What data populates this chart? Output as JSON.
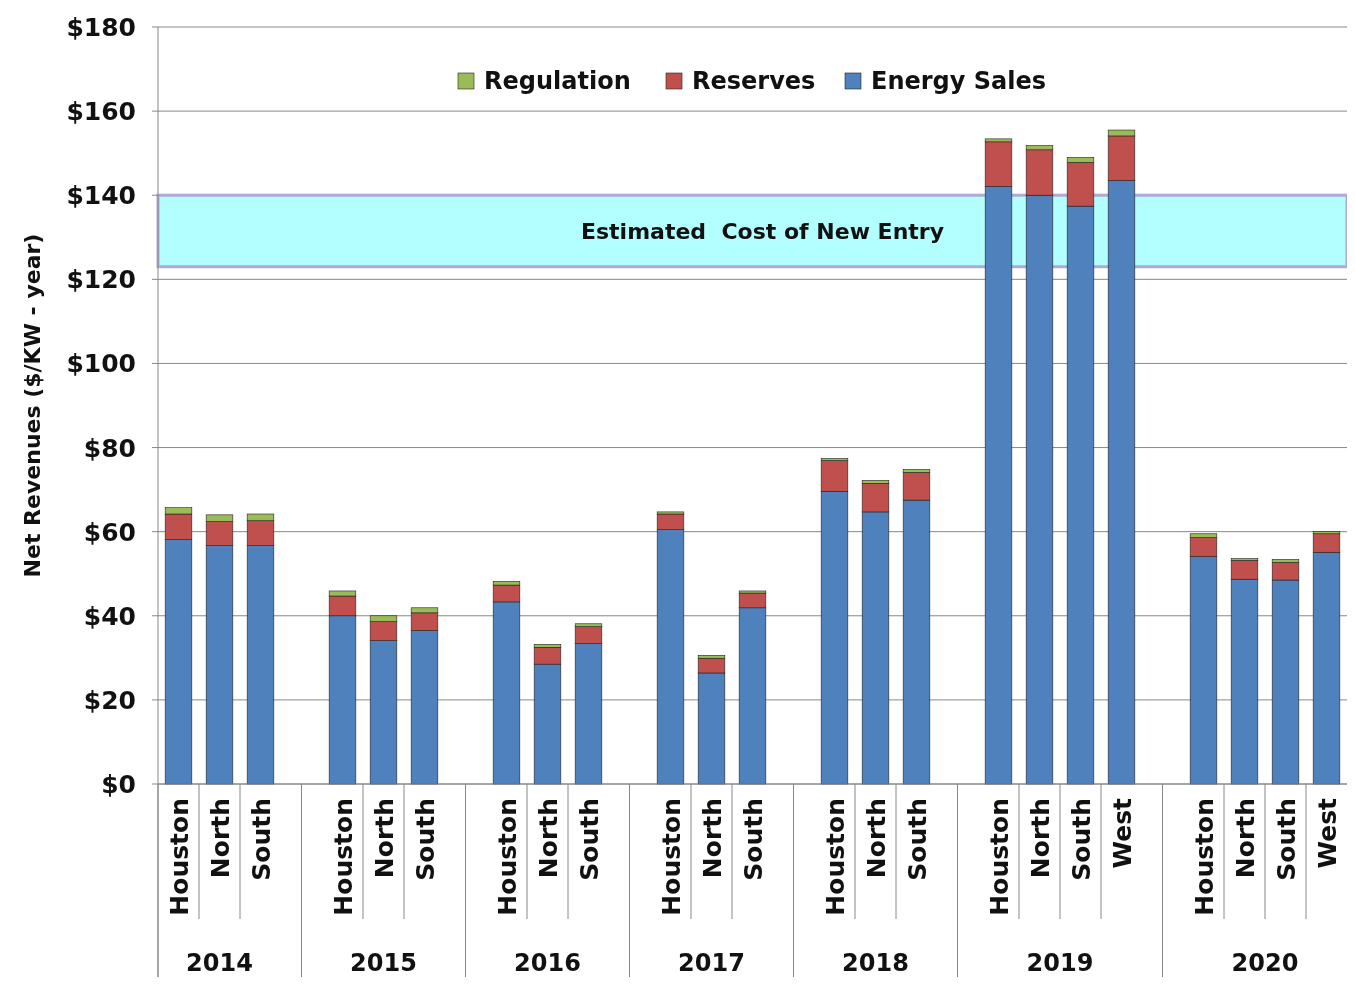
{
  "chart_data": {
    "type": "bar",
    "stacked": true,
    "ylabel": "Net Revenues ($/KW - year)",
    "categories": [
      "Houston",
      "North",
      "South",
      null,
      "Houston",
      "North",
      "South",
      null,
      "Houston",
      "North",
      "South",
      null,
      "Houston",
      "North",
      "South",
      null,
      "Houston",
      "North",
      "South",
      null,
      "Houston",
      "North",
      "South",
      "West",
      null,
      "Houston",
      "North",
      "South",
      "West"
    ],
    "series": [
      {
        "name": "Energy Sales",
        "color": "#4f81bd",
        "values": [
          58.1,
          56.7,
          56.7,
          null,
          40,
          34.1,
          36.5,
          null,
          43.3,
          28.5,
          33.4,
          null,
          60.5,
          26.4,
          41.9,
          null,
          69.6,
          64.7,
          67.5,
          null,
          142.1,
          140,
          137.4,
          143.5,
          null,
          54.1,
          48.7,
          48.5,
          55.1
        ]
      },
      {
        "name": "Reserves",
        "color": "#c0504d",
        "values": [
          6.1,
          5.7,
          5.9,
          null,
          4.7,
          4.5,
          4.2,
          null,
          4,
          4,
          4,
          null,
          3.7,
          3.5,
          3.5,
          null,
          7.3,
          6.8,
          6.6,
          null,
          10.6,
          10.8,
          10.4,
          10.6,
          null,
          4.5,
          4.5,
          4.2,
          4.4
        ]
      },
      {
        "name": "Regulation",
        "color": "#9bbb59",
        "values": [
          1.5,
          1.6,
          1.6,
          null,
          1.2,
          1.4,
          1.2,
          null,
          0.9,
          0.7,
          0.7,
          null,
          0.5,
          0.7,
          0.5,
          null,
          0.5,
          0.7,
          0.7,
          null,
          0.7,
          1,
          1.2,
          1.4,
          null,
          0.9,
          0.4,
          0.7,
          0.5
        ]
      }
    ],
    "ylim": [
      0,
      180
    ],
    "yticks": [
      {
        "value": 0,
        "label": "$0"
      },
      {
        "value": 20,
        "label": "$20"
      },
      {
        "value": 40,
        "label": "$40"
      },
      {
        "value": 60,
        "label": "$60"
      },
      {
        "value": 80,
        "label": "$80"
      },
      {
        "value": 100,
        "label": "$100"
      },
      {
        "value": 120,
        "label": "$120"
      },
      {
        "value": 140,
        "label": "$140"
      },
      {
        "value": 160,
        "label": "$160"
      },
      {
        "value": 180,
        "label": "$180"
      }
    ],
    "grid": "y",
    "legend": "top",
    "bands": [
      {
        "axis": "y",
        "from": 123,
        "to": 140,
        "label": "Estimated  Cost of New Entry",
        "color": "#b3ffff"
      }
    ],
    "annotations": [
      "2014",
      "2015",
      "2016",
      "2017",
      "2018",
      "2019",
      "2020"
    ]
  }
}
